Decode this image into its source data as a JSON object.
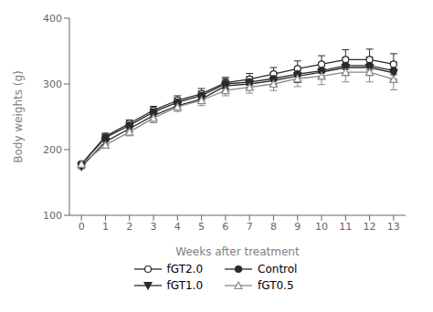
{
  "chart_data": {
    "type": "line",
    "x": [
      0,
      1,
      2,
      3,
      4,
      5,
      6,
      7,
      8,
      9,
      10,
      11,
      12,
      13
    ],
    "xlim": [
      -0.5,
      13.5
    ],
    "xticks": [
      0,
      1,
      2,
      3,
      4,
      5,
      6,
      7,
      8,
      9,
      10,
      11,
      12,
      13
    ],
    "ylim": [
      100,
      400
    ],
    "yticks": [
      100,
      200,
      300,
      400
    ],
    "xlabel": "Weeks after treatment",
    "ylabel": "Body weights (g)",
    "grid": false,
    "legend": "bottom",
    "series": [
      {
        "name": "fGT2.0",
        "color": "#2b2b2b",
        "marker": "open_circle",
        "values": [
          178,
          220,
          240,
          260,
          275,
          285,
          302,
          307,
          315,
          323,
          330,
          337,
          337,
          330
        ],
        "errors": [
          3,
          5,
          5,
          6,
          7,
          8,
          8,
          9,
          10,
          12,
          13,
          15,
          16,
          16
        ]
      },
      {
        "name": "Control",
        "color": "#2b2b2b",
        "marker": "circle",
        "values": [
          178,
          218,
          237,
          257,
          272,
          282,
          300,
          303,
          308,
          315,
          320,
          328,
          328,
          320
        ],
        "errors": [
          3,
          5,
          5,
          6,
          7,
          7,
          8,
          8,
          9,
          10,
          10,
          12,
          13,
          13
        ]
      },
      {
        "name": "fGT1.0",
        "color": "#2b2b2b",
        "marker": "triangle_down",
        "values": [
          174,
          212,
          232,
          252,
          267,
          277,
          297,
          300,
          305,
          312,
          318,
          325,
          325,
          317
        ],
        "errors": [
          3,
          5,
          5,
          6,
          6,
          7,
          8,
          8,
          9,
          10,
          10,
          12,
          12,
          13
        ]
      },
      {
        "name": "fGT0.5",
        "color": "#888888",
        "marker": "open_triangle_up",
        "values": [
          178,
          207,
          227,
          248,
          265,
          275,
          290,
          295,
          300,
          308,
          312,
          318,
          318,
          307
        ],
        "errors": [
          3,
          5,
          6,
          7,
          7,
          8,
          8,
          9,
          10,
          12,
          13,
          15,
          15,
          16
        ]
      }
    ]
  }
}
